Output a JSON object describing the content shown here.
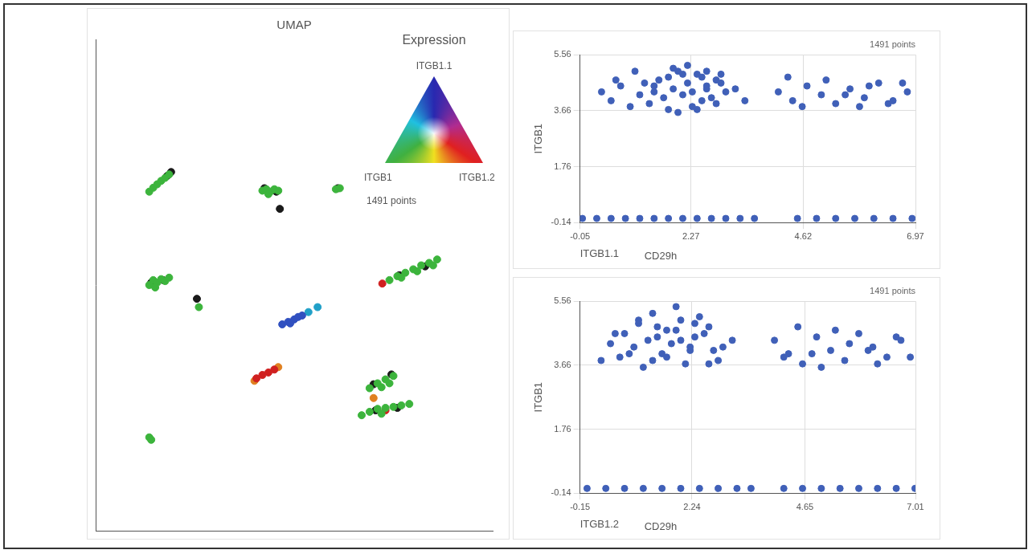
{
  "chart_data": [
    {
      "type": "scatter",
      "title": "UMAP",
      "subtitle": "1491 points",
      "color_legend": {
        "title": "Expression",
        "top": "ITGB1.1",
        "left": "ITGB1",
        "right": "ITGB1.2"
      },
      "xlim": [
        0,
        10
      ],
      "ylim": [
        0,
        10
      ],
      "tick_labels": false,
      "grid": false,
      "series": [
        {
          "color": "#3cb43c",
          "marker": "circle",
          "x": [
            1.35,
            1.45,
            1.55,
            1.65,
            1.75,
            1.85,
            4.2,
            4.3,
            4.4,
            4.5,
            4.6,
            4.35,
            6.05,
            6.15,
            1.35,
            1.45,
            1.55,
            1.65,
            1.75,
            1.85,
            1.5,
            2.6,
            7.4,
            7.6,
            7.8,
            8.0,
            8.2,
            8.4,
            8.6,
            7.7,
            8.1,
            8.5,
            6.9,
            7.1,
            7.3,
            7.5,
            7.2,
            7.4,
            6.7,
            6.9,
            7.1,
            7.3,
            7.5,
            7.7,
            7.9,
            7.2,
            1.35,
            1.4
          ],
          "values": [
            6.9,
            6.98,
            7.05,
            7.12,
            7.18,
            7.25,
            6.92,
            6.95,
            6.9,
            6.95,
            6.92,
            6.85,
            6.95,
            6.97,
            5.0,
            5.1,
            5.05,
            5.12,
            5.08,
            5.15,
            4.95,
            4.55,
            5.1,
            5.18,
            5.25,
            5.32,
            5.4,
            5.45,
            5.52,
            5.15,
            5.28,
            5.4,
            2.9,
            3.0,
            3.08,
            3.15,
            2.92,
            3.0,
            2.35,
            2.42,
            2.48,
            2.5,
            2.52,
            2.55,
            2.58,
            2.38,
            1.9,
            1.85
          ]
        },
        {
          "color": "#1a1a1a",
          "marker": "circle",
          "x": [
            1.9,
            1.8,
            4.25,
            4.55,
            4.64,
            6.1,
            1.4,
            1.7,
            2.55,
            7.65,
            8.3,
            7.0,
            7.45,
            7.6,
            7.05
          ],
          "values": [
            7.3,
            7.22,
            6.97,
            6.9,
            6.55,
            6.97,
            5.05,
            5.1,
            4.72,
            5.2,
            5.38,
            2.98,
            3.18,
            2.5,
            2.45
          ]
        },
        {
          "color": "#3050c0",
          "marker": "circle",
          "x": [
            4.7,
            4.85,
            5.0,
            5.1,
            5.2,
            4.9
          ],
          "values": [
            4.2,
            4.25,
            4.3,
            4.35,
            4.38,
            4.22
          ]
        },
        {
          "color": "#20a0c8",
          "marker": "circle",
          "x": [
            5.36,
            5.59
          ],
          "values": [
            4.45,
            4.55
          ]
        },
        {
          "color": "#d02020",
          "marker": "circle",
          "x": [
            7.22,
            4.05,
            4.2,
            4.35,
            4.5,
            7.3
          ],
          "values": [
            5.03,
            3.1,
            3.17,
            3.22,
            3.28,
            2.45
          ]
        },
        {
          "color": "#e08020",
          "marker": "circle",
          "x": [
            4.0,
            4.6,
            7.0
          ],
          "values": [
            3.05,
            3.33,
            2.7
          ]
        }
      ]
    },
    {
      "type": "scatter",
      "subtitle": "1491 points",
      "x_label": "ITGB1.1",
      "y_label": "ITGB1",
      "z_label": "CD29h",
      "xlim": [
        -0.05,
        6.97
      ],
      "xticks": [
        -0.05,
        2.27,
        4.62,
        6.97
      ],
      "ylim": [
        -0.14,
        5.56
      ],
      "yticks": [
        -0.14,
        1.76,
        3.66,
        5.56
      ],
      "grid": true,
      "series": [
        {
          "color": "#4060b8",
          "marker": "circle",
          "x": [
            1.2,
            1.5,
            1.8,
            2.0,
            2.2,
            2.4,
            2.6,
            2.8,
            3.0,
            1.4,
            1.7,
            1.9,
            2.1,
            2.3,
            2.5,
            2.7,
            2.9,
            1.6,
            1.9,
            2.2,
            2.5,
            2.8,
            1.3,
            1.8,
            2.3,
            2.6,
            2.0,
            2.4,
            0.4,
            0.6,
            0.8,
            1.0,
            0.7,
            3.2,
            3.4,
            1.1,
            2.1,
            2.6,
            1.5,
            2.9,
            4.1,
            4.4,
            4.7,
            5.0,
            5.3,
            5.6,
            5.9,
            6.2,
            6.5,
            6.8,
            4.6,
            5.1,
            5.5,
            6.0,
            6.4,
            6.7,
            4.3,
            5.8,
            0.0,
            0.3,
            0.6,
            0.9,
            1.2,
            1.5,
            1.8,
            2.1,
            2.4,
            2.7,
            3.0,
            3.3,
            3.6,
            4.5,
            4.9,
            5.3,
            5.7,
            6.1,
            6.5,
            6.9
          ],
          "values": [
            4.2,
            4.5,
            4.8,
            5.0,
            4.6,
            4.9,
            4.4,
            4.7,
            4.3,
            3.9,
            4.1,
            4.4,
            4.2,
            3.8,
            4.0,
            4.1,
            4.6,
            4.7,
            5.1,
            5.2,
            4.8,
            3.9,
            4.6,
            3.7,
            4.3,
            5.0,
            3.6,
            3.7,
            4.3,
            4.0,
            4.5,
            3.8,
            4.7,
            4.4,
            4.0,
            5.0,
            4.9,
            4.5,
            4.3,
            4.9,
            4.3,
            4.0,
            4.5,
            4.2,
            3.9,
            4.4,
            4.1,
            4.6,
            4.0,
            4.3,
            3.8,
            4.7,
            4.2,
            4.5,
            3.9,
            4.6,
            4.8,
            3.8,
            0,
            0,
            0,
            0,
            0,
            0,
            0,
            0,
            0,
            0,
            0,
            0,
            0,
            0,
            0,
            0,
            0,
            0,
            0,
            0
          ]
        }
      ]
    },
    {
      "type": "scatter",
      "subtitle": "1491 points",
      "x_label": "ITGB1.2",
      "y_label": "ITGB1",
      "z_label": "CD29h",
      "xlim": [
        -0.15,
        7.01
      ],
      "xticks": [
        -0.15,
        2.24,
        4.65,
        7.01
      ],
      "ylim": [
        -0.14,
        5.56
      ],
      "yticks": [
        -0.14,
        1.76,
        3.66,
        5.56
      ],
      "grid": true,
      "series": [
        {
          "color": "#4060b8",
          "marker": "circle",
          "x": [
            0.5,
            0.8,
            1.1,
            1.4,
            1.7,
            2.0,
            2.3,
            2.6,
            2.9,
            0.7,
            1.0,
            1.3,
            1.6,
            1.9,
            2.2,
            2.5,
            2.8,
            1.2,
            1.5,
            1.8,
            2.1,
            2.4,
            0.9,
            1.4,
            2.0,
            2.7,
            1.1,
            1.7,
            2.3,
            0.6,
            3.1,
            1.9,
            1.5,
            2.2,
            0.3,
            2.6,
            4.0,
            4.3,
            4.6,
            4.9,
            5.2,
            5.5,
            5.8,
            6.1,
            6.4,
            6.7,
            4.5,
            5.0,
            5.6,
            6.2,
            6.6,
            4.8,
            5.3,
            6.0,
            6.9,
            4.2,
            0.0,
            0.4,
            0.8,
            1.2,
            1.6,
            2.0,
            2.4,
            2.8,
            3.2,
            3.5,
            4.2,
            4.6,
            5.0,
            5.4,
            5.8,
            6.2,
            6.6,
            7.0
          ],
          "values": [
            4.3,
            4.6,
            4.9,
            5.2,
            4.7,
            5.0,
            4.5,
            4.8,
            4.2,
            3.9,
            4.2,
            4.4,
            4.0,
            5.4,
            4.1,
            4.6,
            3.8,
            3.6,
            4.8,
            4.3,
            3.7,
            5.1,
            4.0,
            3.8,
            4.4,
            4.1,
            5.0,
            3.9,
            4.9,
            4.6,
            4.4,
            4.7,
            4.5,
            4.2,
            3.8,
            3.7,
            4.4,
            4.0,
            3.7,
            4.5,
            4.1,
            3.8,
            4.6,
            4.2,
            3.9,
            4.4,
            4.8,
            3.6,
            4.3,
            3.7,
            4.5,
            4.0,
            4.7,
            4.1,
            3.9,
            3.9,
            0,
            0,
            0,
            0,
            0,
            0,
            0,
            0,
            0,
            0,
            0,
            0,
            0,
            0,
            0,
            0,
            0,
            0
          ]
        }
      ]
    }
  ]
}
